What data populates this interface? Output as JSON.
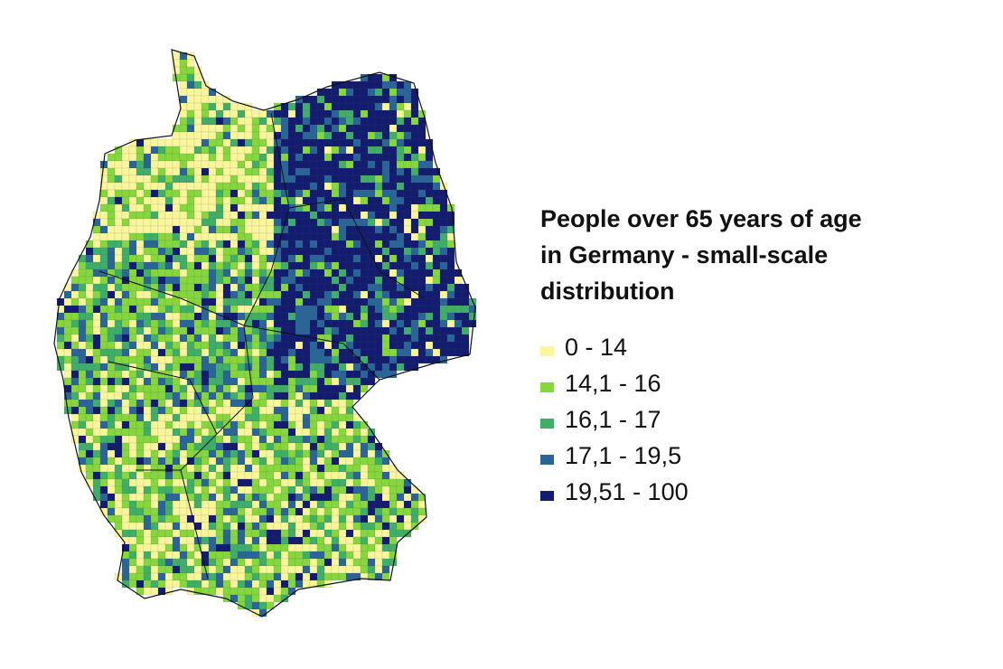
{
  "legend": {
    "title": "People over 65 years of age in Germany - small-scale distribution",
    "items": [
      {
        "label": "0 - 14",
        "color": "#fbf59c"
      },
      {
        "label": "14,1 - 16",
        "color": "#86d63e"
      },
      {
        "label": "16,1 - 17",
        "color": "#3fae68"
      },
      {
        "label": "17,1 - 19,5",
        "color": "#2a6598"
      },
      {
        "label": "19,51 - 100",
        "color": "#131c70"
      }
    ]
  }
}
